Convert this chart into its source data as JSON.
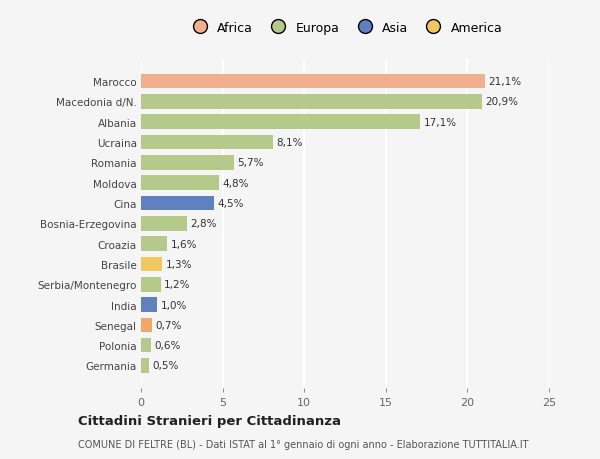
{
  "categories": [
    "Germania",
    "Polonia",
    "Senegal",
    "India",
    "Serbia/Montenegro",
    "Brasile",
    "Croazia",
    "Bosnia-Erzegovina",
    "Cina",
    "Moldova",
    "Romania",
    "Ucraina",
    "Albania",
    "Macedonia d/N.",
    "Marocco"
  ],
  "values": [
    0.5,
    0.6,
    0.7,
    1.0,
    1.2,
    1.3,
    1.6,
    2.8,
    4.5,
    4.8,
    5.7,
    8.1,
    17.1,
    20.9,
    21.1
  ],
  "labels": [
    "0,5%",
    "0,6%",
    "0,7%",
    "1,0%",
    "1,2%",
    "1,3%",
    "1,6%",
    "2,8%",
    "4,5%",
    "4,8%",
    "5,7%",
    "8,1%",
    "17,1%",
    "20,9%",
    "21,1%"
  ],
  "colors": [
    "#b5c98a",
    "#b5c98a",
    "#f0a868",
    "#6080c0",
    "#b5c98a",
    "#f0c860",
    "#b5c98a",
    "#b5c98a",
    "#6080c0",
    "#b5c98a",
    "#b5c98a",
    "#b5c98a",
    "#b5c98a",
    "#b5c98a",
    "#f0b090"
  ],
  "legend_labels": [
    "Africa",
    "Europa",
    "Asia",
    "America"
  ],
  "legend_colors": [
    "#f0b090",
    "#b5c98a",
    "#6080c0",
    "#f0c860"
  ],
  "title": "Cittadini Stranieri per Cittadinanza",
  "subtitle": "COMUNE DI FELTRE (BL) - Dati ISTAT al 1° gennaio di ogni anno - Elaborazione TUTTITALIA.IT",
  "xlim": [
    0,
    25
  ],
  "xticks": [
    0,
    5,
    10,
    15,
    20,
    25
  ],
  "bg_color": "#f5f5f5"
}
